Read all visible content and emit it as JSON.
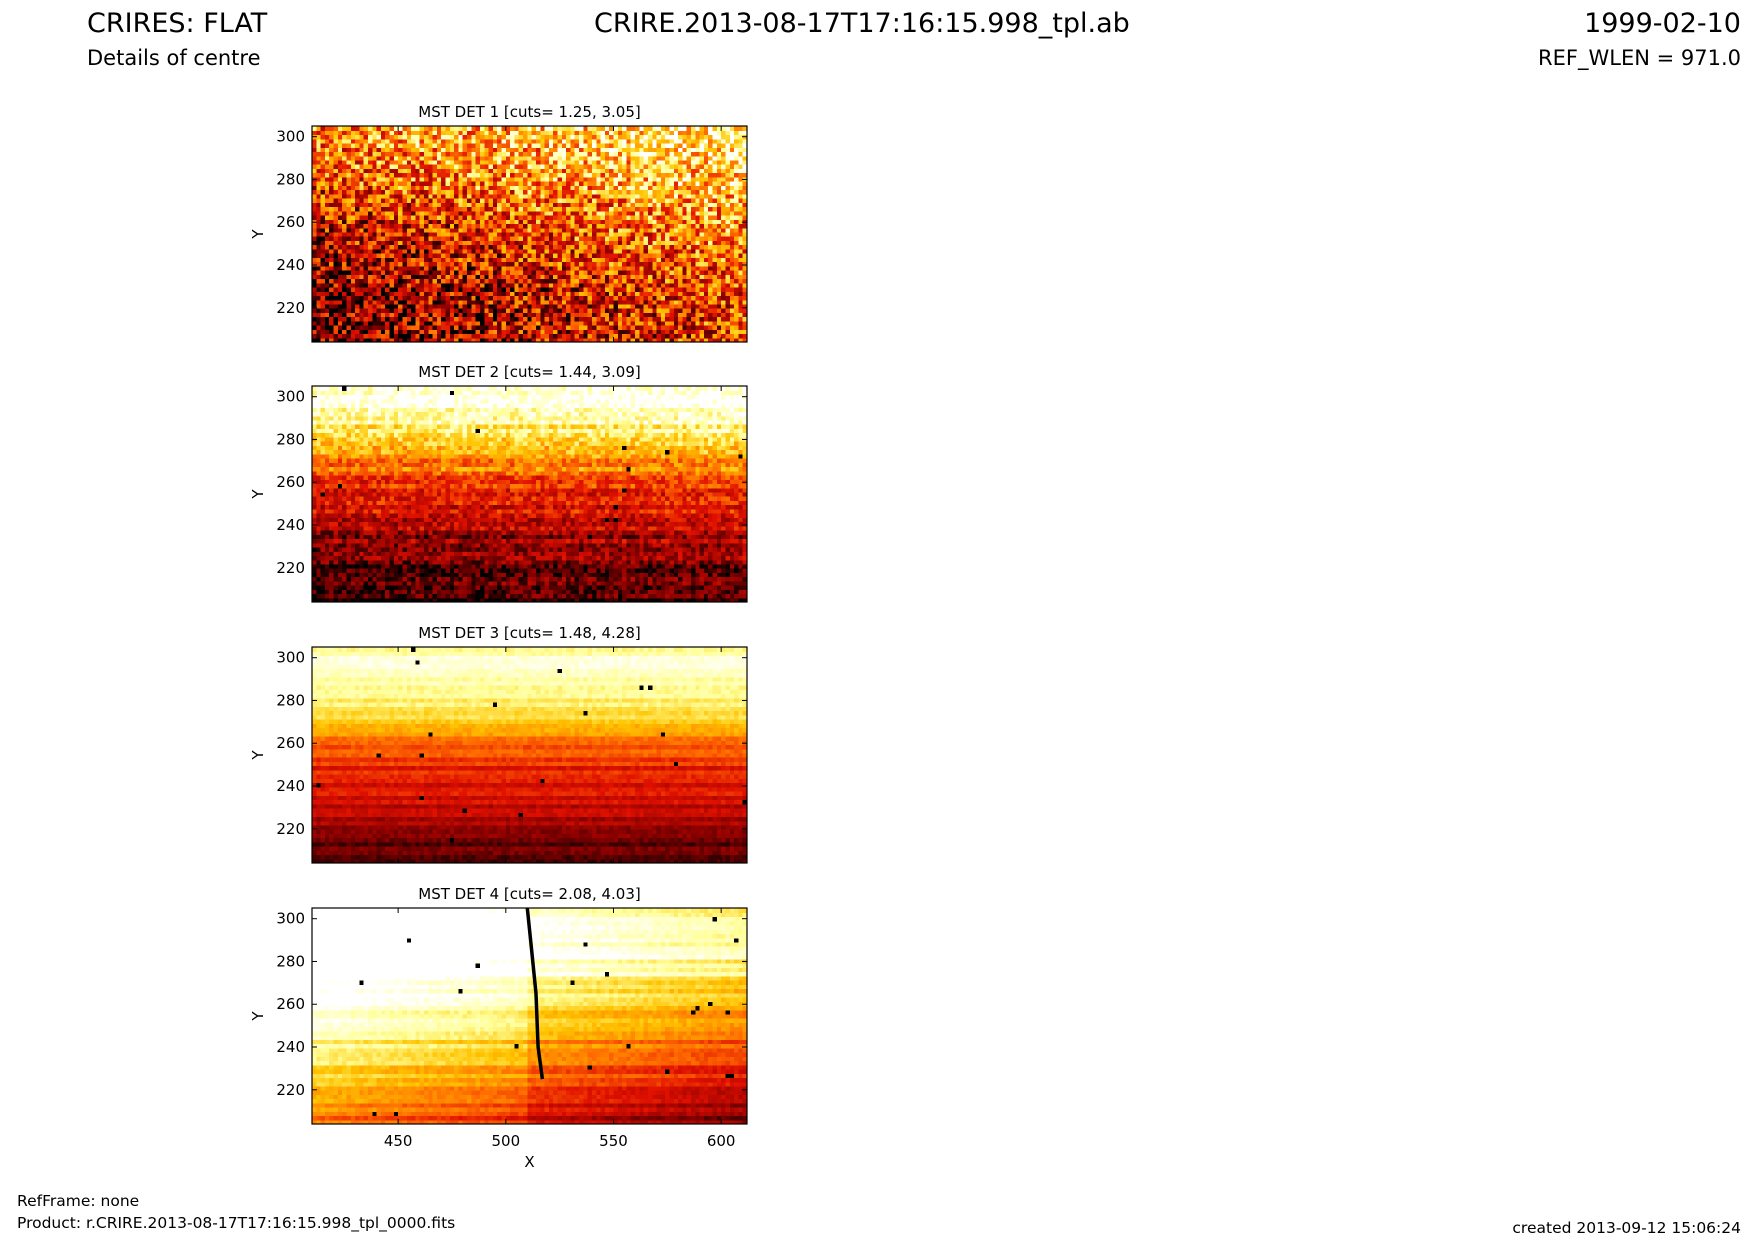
{
  "header": {
    "title": "CRIRES: FLAT",
    "subtitle": "Details of centre",
    "filename": "CRIRE.2013-08-17T17:16:15.998_tpl.ab",
    "date": "1999-02-10",
    "ref_wlen": "REF_WLEN = 971.0"
  },
  "footer": {
    "refframe": "RefFrame: none",
    "product": "Product: r.CRIRE.2013-08-17T17:16:15.998_tpl_0000.fits",
    "created": "created 2013-09-12 15:06:24"
  },
  "colormap": [
    "#000000",
    "#8a0000",
    "#e01000",
    "#ff6a00",
    "#ffc400",
    "#ffff9a",
    "#ffffff"
  ],
  "chart_data": [
    {
      "type": "heatmap",
      "title": "MST DET 1 [cuts= 1.25, 3.05]",
      "cuts": [
        1.25,
        3.05
      ],
      "xlabel": "",
      "ylabel": "Y",
      "xlim": [
        410,
        612
      ],
      "ylim": [
        204,
        305
      ],
      "xticks": [],
      "yticks": [
        220,
        240,
        260,
        280,
        300
      ],
      "texture": "noisy",
      "x_gradient": 0.28,
      "y_profile": [
        [
          204,
          0.28
        ],
        [
          230,
          0.32
        ],
        [
          260,
          0.45
        ],
        [
          285,
          0.62
        ],
        [
          305,
          0.7
        ]
      ],
      "bands": []
    },
    {
      "type": "heatmap",
      "title": "MST DET 2 [cuts= 1.44, 3.09]",
      "cuts": [
        1.44,
        3.09
      ],
      "xlabel": "",
      "ylabel": "Y",
      "xlim": [
        410,
        612
      ],
      "ylim": [
        204,
        305
      ],
      "xticks": [],
      "yticks": [
        220,
        240,
        260,
        280,
        300
      ],
      "texture": "medium",
      "x_gradient": 0.05,
      "y_profile": [
        [
          204,
          0.05
        ],
        [
          220,
          0.12
        ],
        [
          240,
          0.25
        ],
        [
          255,
          0.38
        ],
        [
          265,
          0.5
        ],
        [
          275,
          0.62
        ],
        [
          285,
          0.8
        ],
        [
          295,
          0.93
        ],
        [
          305,
          0.96
        ]
      ],
      "bands": []
    },
    {
      "type": "heatmap",
      "title": "MST DET 3 [cuts= 1.48, 4.28]",
      "cuts": [
        1.48,
        4.28
      ],
      "xlabel": "",
      "ylabel": "Y",
      "xlim": [
        410,
        612
      ],
      "ylim": [
        204,
        305
      ],
      "xticks": [],
      "yticks": [
        220,
        240,
        260,
        280,
        300
      ],
      "texture": "smooth",
      "x_gradient": 0.0,
      "y_profile": [
        [
          204,
          0.08
        ],
        [
          220,
          0.2
        ],
        [
          240,
          0.32
        ],
        [
          250,
          0.38
        ],
        [
          262,
          0.55
        ],
        [
          275,
          0.75
        ],
        [
          285,
          0.85
        ],
        [
          295,
          0.93
        ],
        [
          305,
          0.85
        ]
      ],
      "bands": []
    },
    {
      "type": "heatmap",
      "title": "MST DET 4 [cuts= 2.08, 4.03]",
      "cuts": [
        2.08,
        4.03
      ],
      "xlabel": "X",
      "ylabel": "Y",
      "xlim": [
        410,
        612
      ],
      "ylim": [
        204,
        305
      ],
      "xticks": [
        450,
        500,
        550,
        600
      ],
      "yticks": [
        220,
        240,
        260,
        280,
        300
      ],
      "texture": "smooth",
      "x_gradient": -0.3,
      "y_profile": [
        [
          204,
          0.28
        ],
        [
          230,
          0.5
        ],
        [
          255,
          0.7
        ],
        [
          270,
          0.85
        ],
        [
          285,
          0.95
        ],
        [
          305,
          0.95
        ]
      ],
      "bands": [
        [
          284,
          0.14
        ],
        [
          275,
          0.08
        ],
        [
          262,
          0.08
        ],
        [
          295,
          0.06
        ]
      ],
      "defect_line": [
        [
          510,
          305
        ],
        [
          512,
          285
        ],
        [
          514,
          265
        ],
        [
          515,
          240
        ],
        [
          517,
          225
        ]
      ]
    }
  ]
}
